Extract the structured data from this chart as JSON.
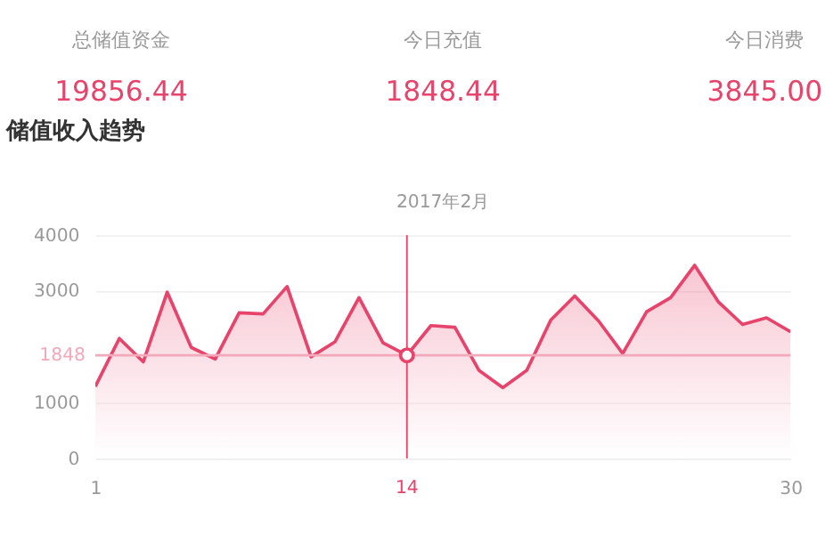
{
  "chart_data": [
    {
      "type": "other",
      "categories": [
        "总储值资金",
        "今日充值",
        "今日消费"
      ],
      "value_labels": [
        "19856.44",
        "1848.44",
        "3845.00"
      ],
      "color": "#e8436b"
    },
    {
      "type": "area",
      "title": "储值收入趋势",
      "subtitle": "2017年2月",
      "x": [
        1,
        2,
        3,
        4,
        5,
        6,
        7,
        8,
        9,
        10,
        11,
        12,
        13,
        14,
        15,
        16,
        17,
        18,
        19,
        20,
        21,
        22,
        23,
        24,
        25,
        26,
        27,
        28,
        29,
        30
      ],
      "series": [
        {
          "color": "#e8436b",
          "values": [
            1290,
            2150,
            1730,
            2980,
            1990,
            1780,
            2610,
            2590,
            3080,
            1820,
            2090,
            2880,
            2070,
            1848,
            2380,
            2350,
            1580,
            1270,
            1580,
            2480,
            2910,
            2460,
            1880,
            2630,
            2880,
            3460,
            2800,
            2400,
            2520,
            2270
          ]
        }
      ],
      "xlim": [
        1,
        30
      ],
      "xticks": [
        1,
        30
      ],
      "ylim": [
        0,
        4000
      ],
      "yticks": [
        0,
        1000,
        3000,
        4000
      ],
      "grid": "y",
      "marker": "none",
      "legend": false,
      "ref_lines": [
        {
          "axis": "y",
          "value": 1848,
          "label": "1848",
          "color": "#f4a9bb"
        },
        {
          "axis": "x",
          "value": 14,
          "label": "14",
          "color": "#e8436b"
        }
      ]
    }
  ]
}
